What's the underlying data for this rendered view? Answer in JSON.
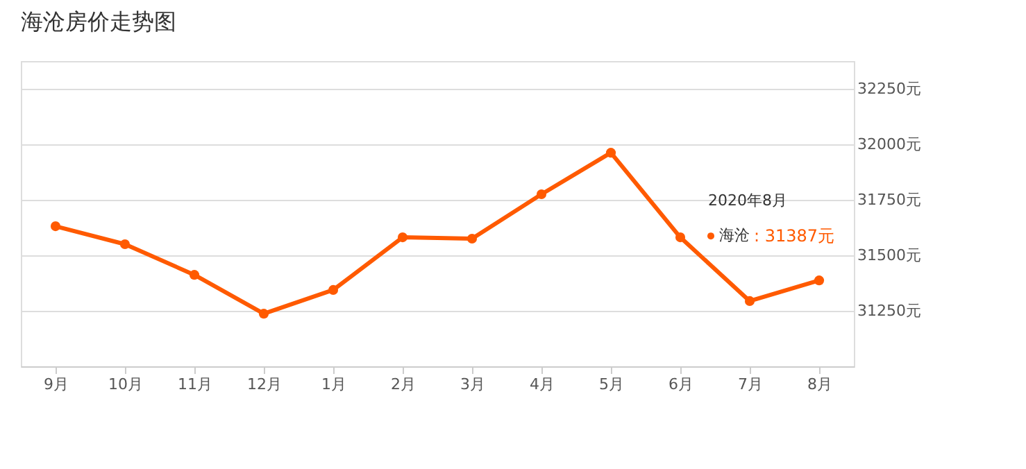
{
  "chart_data": {
    "type": "line",
    "title": "海沧房价走势图",
    "categories": [
      "9月",
      "10月",
      "11月",
      "12月",
      "1月",
      "2月",
      "3月",
      "4月",
      "5月",
      "6月",
      "7月",
      "8月"
    ],
    "series": [
      {
        "name": "海沧",
        "color": "#ff5a00",
        "values": [
          31631,
          31550,
          31412,
          31237,
          31344,
          31581,
          31575,
          31775,
          31962,
          31581,
          31294,
          31387
        ]
      }
    ],
    "ylim": [
      31000,
      32375
    ],
    "yticks": [
      {
        "value": 31000,
        "label": null
      },
      {
        "value": 31250,
        "label": "31250元"
      },
      {
        "value": 31500,
        "label": "31500元"
      },
      {
        "value": 31750,
        "label": "31750元"
      },
      {
        "value": 32000,
        "label": "32000元"
      },
      {
        "value": 32250,
        "label": "32250元"
      }
    ],
    "annotations": [
      "2020年8月",
      {
        "text": ":  31387元",
        "x": "8月",
        "y": 31387
      }
    ],
    "grid": "y",
    "marker": "circle",
    "line_style": "solid",
    "legend": "right"
  }
}
